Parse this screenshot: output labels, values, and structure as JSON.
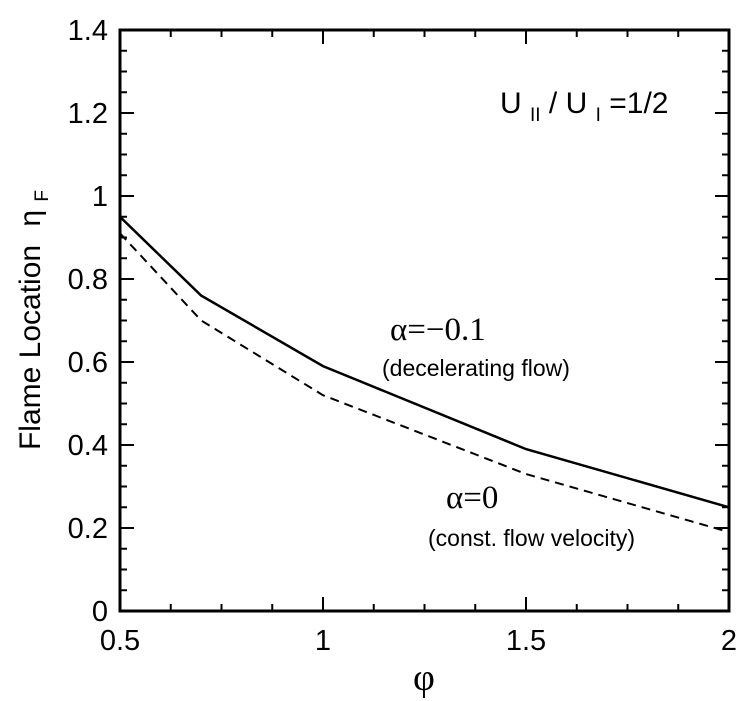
{
  "chart_data": {
    "type": "line",
    "xlabel": "φ",
    "ylabel": "Flame Location",
    "ylabel_symbol": "η",
    "ylabel_subscript": "F",
    "xlim": [
      0.5,
      2
    ],
    "ylim": [
      0,
      1.4
    ],
    "x_ticks": [
      0.5,
      1,
      1.5,
      2
    ],
    "x_tick_labels": [
      "0.5",
      "1",
      "1.5",
      "2"
    ],
    "y_ticks": [
      0,
      0.2,
      0.4,
      0.6,
      0.8,
      1,
      1.2,
      1.4
    ],
    "y_tick_labels": [
      "0",
      "0.2",
      "0.4",
      "0.6",
      "0.8",
      "1",
      "1.2",
      "1.4"
    ],
    "grid": false,
    "series": [
      {
        "style": "solid",
        "x": [
          0.5,
          0.7,
          1.0,
          1.5,
          2.0
        ],
        "y": [
          0.95,
          0.76,
          0.59,
          0.39,
          0.25
        ]
      },
      {
        "style": "dashed",
        "x": [
          0.5,
          0.7,
          1.0,
          1.5,
          2.0
        ],
        "y": [
          0.91,
          0.7,
          0.52,
          0.33,
          0.19
        ]
      }
    ],
    "annotations": {
      "ratio": {
        "u1": "U",
        "s1": "II",
        "slash": "/",
        "u2": "U",
        "s2": "I",
        "eq": "=1/2"
      },
      "solid_label": "α=−0.1",
      "solid_note": "(decelerating flow)",
      "dashed_label": "α=0",
      "dashed_note": "(const. flow velocity)"
    }
  }
}
